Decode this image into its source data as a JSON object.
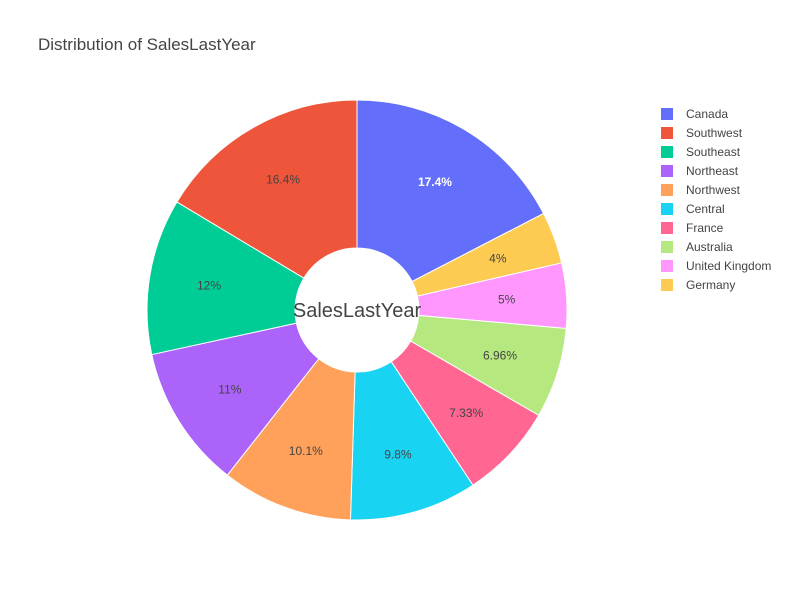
{
  "chart_data": {
    "type": "pie",
    "hole": true,
    "title": "Distribution of SalesLastYear",
    "center_label": "SalesLastYear",
    "direction": "clockwise",
    "legend_position": "right",
    "slices": [
      {
        "label": "Canada",
        "value": 17.4,
        "display": "17.4%",
        "color": "#636efa",
        "label_color": "#ffffff"
      },
      {
        "label": "Germany",
        "value": 4.0,
        "display": "4%",
        "color": "#fecb52",
        "label_color": "#444444"
      },
      {
        "label": "United Kingdom",
        "value": 5.0,
        "display": "5%",
        "color": "#ff97ff",
        "label_color": "#444444"
      },
      {
        "label": "Australia",
        "value": 6.96,
        "display": "6.96%",
        "color": "#b6e880",
        "label_color": "#444444"
      },
      {
        "label": "France",
        "value": 7.33,
        "display": "7.33%",
        "color": "#ff6692",
        "label_color": "#444444"
      },
      {
        "label": "Central",
        "value": 9.8,
        "display": "9.8%",
        "color": "#19d3f3",
        "label_color": "#444444"
      },
      {
        "label": "Northwest",
        "value": 10.1,
        "display": "10.1%",
        "color": "#ffa15a",
        "label_color": "#444444"
      },
      {
        "label": "Northeast",
        "value": 11.0,
        "display": "11%",
        "color": "#ab63fa",
        "label_color": "#444444"
      },
      {
        "label": "Southeast",
        "value": 12.0,
        "display": "12%",
        "color": "#00cc96",
        "label_color": "#444444"
      },
      {
        "label": "Southwest",
        "value": 16.4,
        "display": "16.4%",
        "color": "#ef553b",
        "label_color": "#444444"
      }
    ],
    "legend": [
      {
        "label": "Canada",
        "color": "#636efa"
      },
      {
        "label": "Southwest",
        "color": "#ef553b"
      },
      {
        "label": "Southeast",
        "color": "#00cc96"
      },
      {
        "label": "Northeast",
        "color": "#ab63fa"
      },
      {
        "label": "Northwest",
        "color": "#ffa15a"
      },
      {
        "label": "Central",
        "color": "#19d3f3"
      },
      {
        "label": "France",
        "color": "#ff6692"
      },
      {
        "label": "Australia",
        "color": "#b6e880"
      },
      {
        "label": "United Kingdom",
        "color": "#ff97ff"
      },
      {
        "label": "Germany",
        "color": "#fecb52"
      }
    ]
  }
}
